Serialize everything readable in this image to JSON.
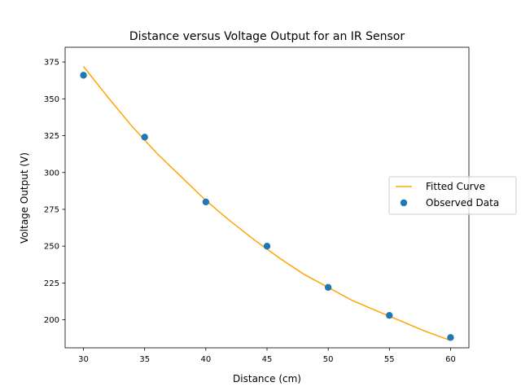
{
  "chart_data": {
    "type": "scatter",
    "title": "Distance versus Voltage Output for an IR Sensor",
    "xlabel": "Distance (cm)",
    "ylabel": "Voltage Output (V)",
    "xlim": [
      28.5,
      61.5
    ],
    "ylim": [
      181,
      385
    ],
    "xticks": [
      30,
      35,
      40,
      45,
      50,
      55,
      60
    ],
    "yticks": [
      200,
      225,
      250,
      275,
      300,
      325,
      350,
      375
    ],
    "grid": false,
    "legend_position": "right",
    "series": [
      {
        "name": "Fitted Curve",
        "kind": "line",
        "color": "#ffa500",
        "x": [
          30,
          32,
          34,
          36,
          38,
          40,
          42,
          44,
          46,
          48,
          50,
          52,
          54,
          56,
          58,
          60
        ],
        "y": [
          372,
          351,
          331,
          313,
          297,
          281,
          267,
          254,
          242,
          231,
          222,
          213,
          206,
          199,
          192,
          186
        ]
      },
      {
        "name": "Observed Data",
        "kind": "scatter",
        "color": "#1f77b4",
        "x": [
          30,
          35,
          40,
          45,
          50,
          55,
          60
        ],
        "y": [
          366,
          324,
          280,
          250,
          222,
          203,
          188
        ]
      }
    ]
  }
}
